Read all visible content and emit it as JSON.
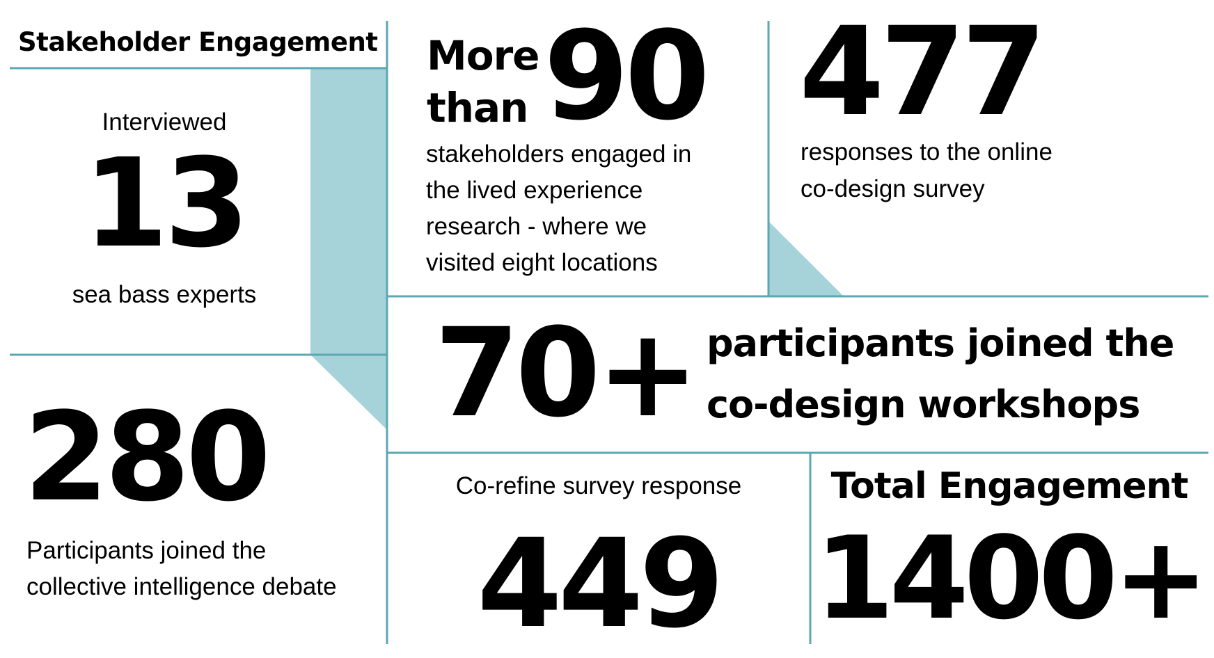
{
  "colors": {
    "line": "#5ba7b3",
    "accent_fill": "#a6d3d9",
    "text": "#000000",
    "background": "#ffffff"
  },
  "title": "Stakeholder Engagement",
  "interviewed": {
    "label": "Interviewed",
    "value": "13",
    "caption": "sea bass experts"
  },
  "debate": {
    "value": "280",
    "caption_line1": "Participants joined the",
    "caption_line2": "collective intelligence debate"
  },
  "lived_experience": {
    "prefix_line1": "More",
    "prefix_line2": "than",
    "value": "90",
    "caption_line1": "stakeholders engaged in",
    "caption_line2": "the lived experience",
    "caption_line3": "research - where we",
    "caption_line4": "visited eight locations"
  },
  "online_survey": {
    "value": "477",
    "caption_line1": "responses to the online",
    "caption_line2": "co-design survey"
  },
  "workshops": {
    "value": "70+",
    "caption_line1": "participants joined the",
    "caption_line2": "co-design workshops"
  },
  "co_refine": {
    "label": "Co-refine survey response",
    "value": "449"
  },
  "total": {
    "label": "Total Engagement",
    "value": "1400+"
  }
}
